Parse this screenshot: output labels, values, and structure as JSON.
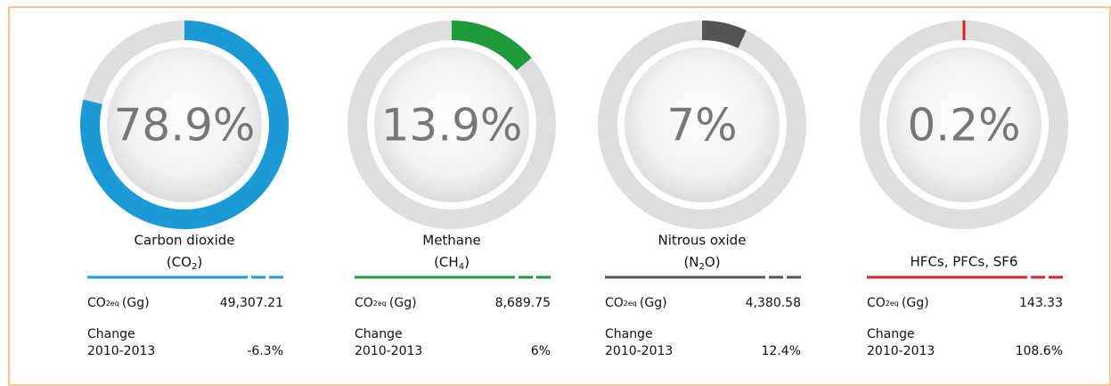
{
  "vlim": [
    0,
    100
  ],
  "co2_label": [
    "CO",
    "2eq",
    "(Gg)"
  ],
  "change_label": [
    "Change",
    "2010-2013"
  ],
  "gauges": [
    {
      "value": 78.9,
      "value_label": "78.9%",
      "color": "#1a9ad6",
      "name": "Carbon dioxide",
      "formula": [
        "(CO",
        "2",
        ")"
      ],
      "co2eq": "49,307.21",
      "change": "-6.3%"
    },
    {
      "value": 13.9,
      "value_label": "13.9%",
      "color": "#1f9a3a",
      "name": "Methane",
      "formula": [
        "(CH",
        "4",
        ")"
      ],
      "co2eq": "8,689.75",
      "change": "6%"
    },
    {
      "value": 7,
      "value_label": "7%",
      "color": "#555555",
      "name": "Nitrous oxide",
      "formula": [
        "(N",
        "2",
        "O)"
      ],
      "co2eq": "4,380.58",
      "change": "12.4%"
    },
    {
      "value": 0.2,
      "value_label": "0.2%",
      "color": "#d6232a",
      "name": "HFCs, PFCs, SF6",
      "formula": null,
      "co2eq": "143.33",
      "change": "108.6%"
    }
  ]
}
